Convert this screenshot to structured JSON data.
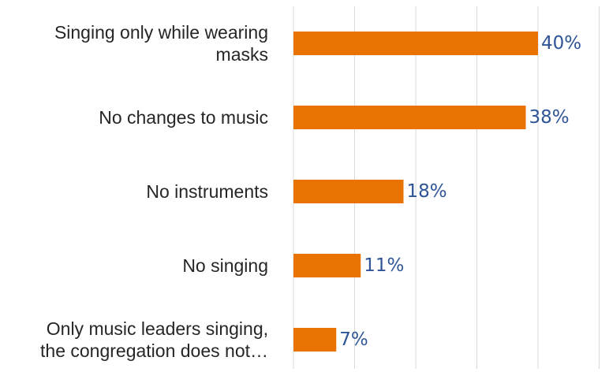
{
  "chart_data": {
    "type": "bar",
    "orientation": "horizontal",
    "categories": [
      [
        "Singing only while wearing",
        "masks"
      ],
      [
        "No changes to music"
      ],
      [
        "No instruments"
      ],
      [
        "No singing"
      ],
      [
        "Only music leaders singing,",
        "the congregation does not…"
      ]
    ],
    "values": [
      40,
      38,
      18,
      11,
      7
    ],
    "value_labels": [
      "40%",
      "38%",
      "18%",
      "11%",
      "7%"
    ],
    "xlim": [
      0,
      50
    ],
    "grid": true,
    "legend": "none",
    "bar_color": "#e97300",
    "label_color": "#2f5597"
  }
}
